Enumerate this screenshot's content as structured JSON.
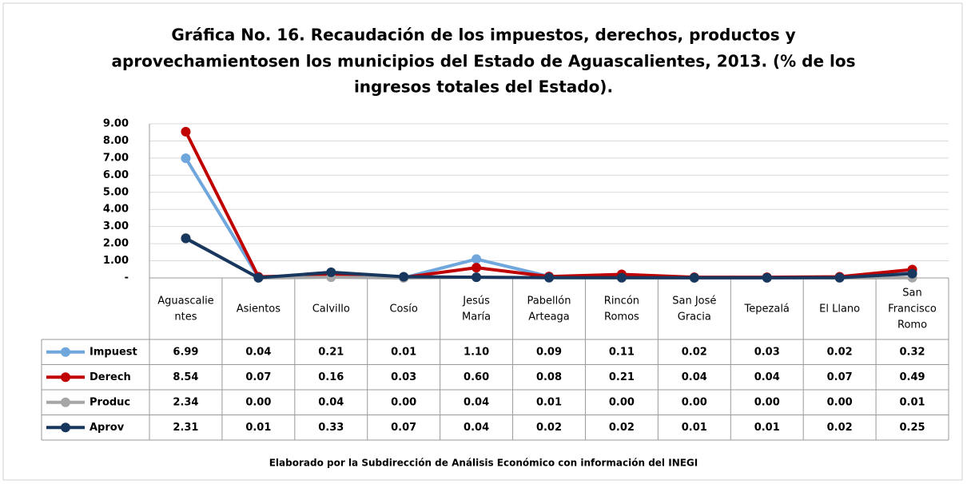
{
  "chart_data": {
    "type": "line",
    "title": [
      "Gráfica No. 16. Recaudación de los impuestos, derechos, productos y",
      "aprovechamientosen los municipios del Estado de Aguascalientes, 2013. (% de los",
      "ingresos totales del Estado)."
    ],
    "footer": "Elaborado por la Subdirección de Análisis Económico con información del INEGI",
    "categories": [
      "Aguascalientes",
      "Asientos",
      "Calvillo",
      "Cosío",
      "Jesús María",
      "Pabellón Arteaga",
      "Rincón Romos",
      "San José Gracia",
      "Tepezalá",
      "El Llano",
      "San Francisco Romo"
    ],
    "series": [
      {
        "name": "Impuest",
        "color": "#6fa6dc",
        "values": [
          6.99,
          0.04,
          0.21,
          0.01,
          1.1,
          0.09,
          0.11,
          0.02,
          0.03,
          0.02,
          0.32
        ],
        "value_labels": [
          "6.99",
          "0.04",
          "0.21",
          "0.01",
          "1.10",
          "0.09",
          "0.11",
          "0.02",
          "0.03",
          "0.02",
          "0.32"
        ]
      },
      {
        "name": "Derech",
        "color": "#c00000",
        "values": [
          8.54,
          0.07,
          0.16,
          0.03,
          0.6,
          0.08,
          0.21,
          0.04,
          0.04,
          0.07,
          0.49
        ],
        "value_labels": [
          "8.54",
          "0.07",
          "0.16",
          "0.03",
          "0.60",
          "0.08",
          "0.21",
          "0.04",
          "0.04",
          "0.07",
          "0.49"
        ]
      },
      {
        "name": "Produc",
        "color": "#a6a6a6",
        "values": [
          2.34,
          0,
          0.04,
          0,
          0.04,
          0.01,
          0,
          0,
          0,
          0,
          0.01
        ],
        "value_labels": [
          "2.34",
          "0.00",
          "0.04",
          "0.00",
          "0.04",
          "0.01",
          "0.00",
          "0.00",
          "0.00",
          "0.00",
          "0.01"
        ]
      },
      {
        "name": "Aprov",
        "color": "#17375e",
        "values": [
          2.31,
          0.01,
          0.33,
          0.07,
          0.04,
          0.02,
          0.02,
          0.01,
          0.01,
          0.02,
          0.25
        ],
        "value_labels": [
          "2.31",
          "0.01",
          "0.33",
          "0.07",
          "0.04",
          "0.02",
          "0.02",
          "0.01",
          "0.01",
          "0.02",
          "0.25"
        ]
      }
    ],
    "ylim": [
      0,
      9
    ],
    "yticks": [
      {
        "value": 0,
        "label": "-"
      },
      {
        "value": 1,
        "label": "1.00"
      },
      {
        "value": 2,
        "label": "2.00"
      },
      {
        "value": 3,
        "label": "3.00"
      },
      {
        "value": 4,
        "label": "4.00"
      },
      {
        "value": 5,
        "label": "5.00"
      },
      {
        "value": 6,
        "label": "6.00"
      },
      {
        "value": 7,
        "label": "7.00"
      },
      {
        "value": 8,
        "label": "8.00"
      },
      {
        "value": 9,
        "label": "9.00"
      }
    ],
    "grid": true
  }
}
